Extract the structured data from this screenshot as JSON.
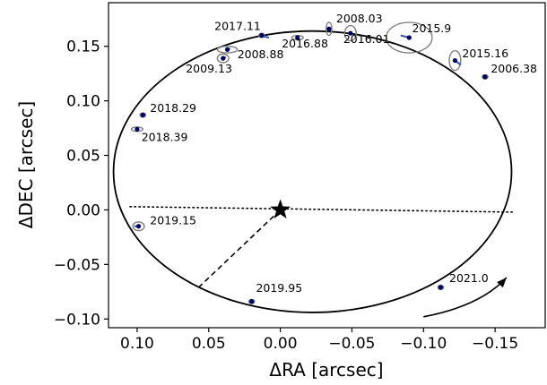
{
  "chart_data": {
    "type": "scatter",
    "title": "",
    "xlabel": "ΔRA [arcsec]",
    "ylabel": "ΔDEC [arcsec]",
    "xlim": [
      0.12,
      -0.185
    ],
    "ylim": [
      -0.108,
      0.19
    ],
    "x_inverted": true,
    "grid": false,
    "x_ticks": [
      0.1,
      0.05,
      0.0,
      -0.05,
      -0.1,
      -0.15
    ],
    "x_tick_labels": [
      "0.10",
      "0.05",
      "0.00",
      "−0.05",
      "−0.10",
      "−0.15"
    ],
    "y_ticks": [
      0.15,
      0.1,
      0.05,
      0.0,
      -0.05,
      -0.1
    ],
    "y_tick_labels": [
      "0.15",
      "0.10",
      "0.05",
      "0.00",
      "−0.05",
      "−0.10"
    ],
    "central_star": {
      "x": 0.0,
      "y": 0.0,
      "marker": "star"
    },
    "orbit": {
      "center": [
        -0.0225,
        0.035
      ],
      "semi_axes": [
        0.139,
        0.129
      ],
      "line": "solid",
      "color": "#000000"
    },
    "line_of_nodes": {
      "from": [
        0.105,
        0.003
      ],
      "to": [
        -0.162,
        -0.002
      ],
      "style": "dotted"
    },
    "periastron_line": {
      "from": [
        0.0,
        0.0
      ],
      "to": [
        0.057,
        -0.071
      ],
      "style": "dashed"
    },
    "direction_arrow": {
      "from": [
        -0.1,
        -0.098
      ],
      "to": [
        -0.158,
        -0.062
      ],
      "meaning": "direction of orbital motion"
    },
    "observations": [
      {
        "epoch": "2017.11",
        "x": 0.013,
        "y": 0.16,
        "err": [
          0.002,
          0.002
        ],
        "label_pos": [
          0.046,
          0.165
        ]
      },
      {
        "epoch": "2008.03",
        "x": -0.034,
        "y": 0.166,
        "err": [
          0.002,
          0.006
        ],
        "label_pos": [
          -0.039,
          0.172
        ]
      },
      {
        "epoch": "2015.9",
        "x": -0.09,
        "y": 0.158,
        "err": [
          0.016,
          0.014
        ],
        "label_pos": [
          -0.092,
          0.163
        ]
      },
      {
        "epoch": "2016.88",
        "x": -0.012,
        "y": 0.158,
        "err": [
          0.004,
          0.002
        ],
        "label_pos": [
          -0.001,
          0.149
        ]
      },
      {
        "epoch": "2016.01",
        "x": -0.049,
        "y": 0.162,
        "err": [
          0.004,
          0.007
        ],
        "label_pos": [
          -0.044,
          0.153
        ]
      },
      {
        "epoch": "2015.16",
        "x": -0.122,
        "y": 0.137,
        "err": [
          0.004,
          0.009
        ],
        "label_pos": [
          -0.127,
          0.14
        ]
      },
      {
        "epoch": "2006.38",
        "x": -0.143,
        "y": 0.122,
        "err": [
          0.002,
          0.002
        ],
        "label_pos": [
          -0.147,
          0.126
        ]
      },
      {
        "epoch": "2008.88",
        "x": 0.037,
        "y": 0.147,
        "err": [
          0.007,
          0.003
        ],
        "label_pos": [
          0.03,
          0.139
        ]
      },
      {
        "epoch": "2009.13",
        "x": 0.04,
        "y": 0.139,
        "err": [
          0.004,
          0.004
        ],
        "label_pos": [
          0.066,
          0.126
        ]
      },
      {
        "epoch": "2018.29",
        "x": 0.096,
        "y": 0.087,
        "err": [
          0.002,
          0.002
        ],
        "label_pos": [
          0.091,
          0.09
        ]
      },
      {
        "epoch": "2018.39",
        "x": 0.1,
        "y": 0.074,
        "err": [
          0.004,
          0.002
        ],
        "label_pos": [
          0.097,
          0.063
        ]
      },
      {
        "epoch": "2019.15",
        "x": 0.099,
        "y": -0.015,
        "err": [
          0.004,
          0.004
        ],
        "label_pos": [
          0.091,
          -0.013
        ]
      },
      {
        "epoch": "2019.95",
        "x": 0.02,
        "y": -0.084,
        "err": [
          0.002,
          0.002
        ],
        "label_pos": [
          0.017,
          -0.075
        ]
      },
      {
        "epoch": "2021.0",
        "x": -0.112,
        "y": -0.071,
        "err": [
          0.002,
          0.002
        ],
        "label_pos": [
          -0.118,
          -0.066
        ]
      }
    ],
    "connectors": [
      {
        "from": [
          0.014,
          0.16
        ],
        "to": [
          0.008,
          0.158
        ]
      },
      {
        "from": [
          0.037,
          0.147
        ],
        "to": [
          0.035,
          0.148
        ]
      },
      {
        "from": [
          0.04,
          0.139
        ],
        "to": [
          0.038,
          0.14
        ]
      },
      {
        "from": [
          0.096,
          0.087
        ],
        "to": [
          0.097,
          0.086
        ]
      },
      {
        "from": [
          0.1,
          0.074
        ],
        "to": [
          0.101,
          0.074
        ]
      },
      {
        "from": [
          -0.122,
          0.137
        ],
        "to": [
          -0.126,
          0.133
        ]
      },
      {
        "from": [
          0.099,
          -0.015
        ],
        "to": [
          0.102,
          -0.015
        ]
      },
      {
        "from": [
          -0.084,
          0.16
        ],
        "to": [
          -0.09,
          0.158
        ]
      }
    ],
    "colors": {
      "orbit": "#000000",
      "observation": "#000060",
      "error_ellipse": "#808080",
      "connector": "#3050c0"
    }
  }
}
